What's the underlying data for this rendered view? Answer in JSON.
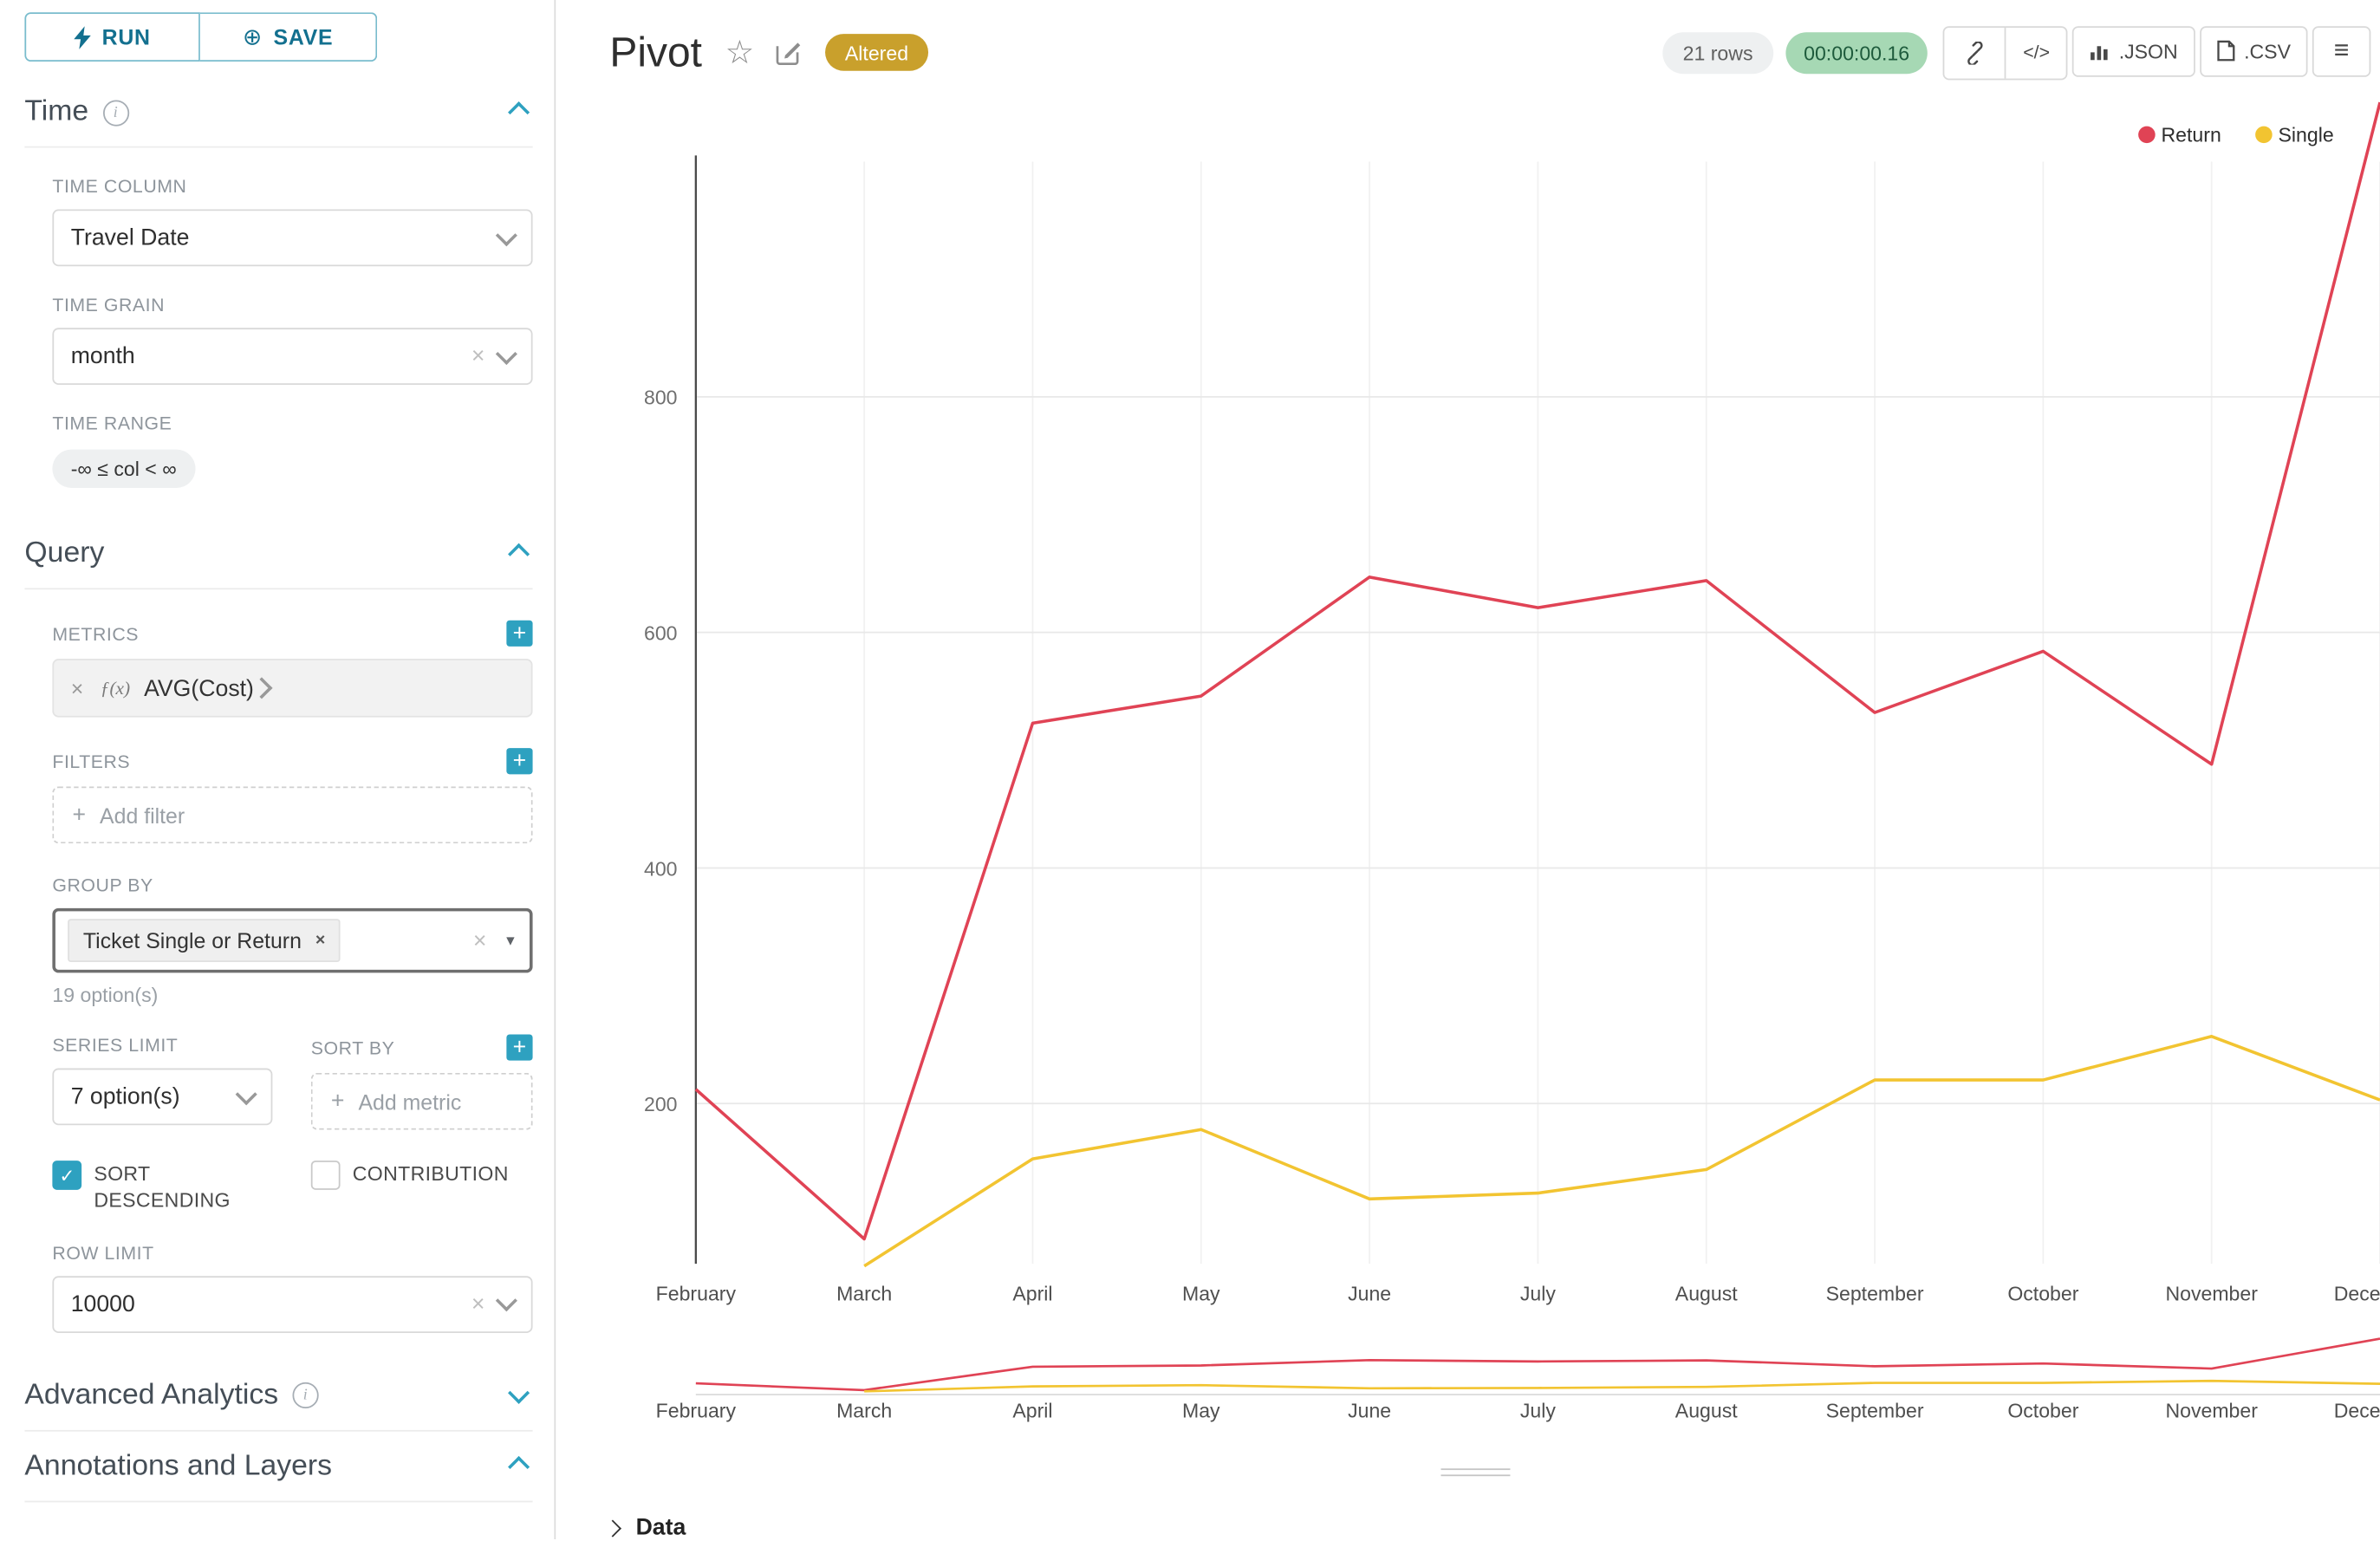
{
  "toolbar": {
    "run_label": "RUN",
    "save_label": "SAVE"
  },
  "panel": {
    "time": {
      "title": "Time",
      "time_column_label": "TIME COLUMN",
      "time_column_value": "Travel Date",
      "time_grain_label": "TIME GRAIN",
      "time_grain_value": "month",
      "time_range_label": "TIME RANGE",
      "time_range_value": "-∞ ≤ col < ∞"
    },
    "query": {
      "title": "Query",
      "metrics_label": "METRICS",
      "metric_value": "AVG(Cost)",
      "filters_label": "FILTERS",
      "add_filter_label": "Add filter",
      "group_by_label": "GROUP BY",
      "group_by_tag": "Ticket Single or Return",
      "group_by_hint": "19 option(s)",
      "series_limit_label": "SERIES LIMIT",
      "series_limit_value": "7 option(s)",
      "sort_by_label": "SORT BY",
      "add_metric_label": "Add metric",
      "sort_descending_label": "SORT DESCENDING",
      "contribution_label": "CONTRIBUTION",
      "row_limit_label": "ROW LIMIT",
      "row_limit_value": "10000"
    },
    "advanced_analytics_title": "Advanced Analytics",
    "annotations_title": "Annotations and Layers"
  },
  "header": {
    "title": "Pivot",
    "altered_badge": "Altered",
    "rows_badge": "21 rows",
    "timer": "00:00:00.16",
    "code_button": "</>",
    "json_button": ".JSON",
    "csv_button": ".CSV"
  },
  "icons": {
    "plus": "+",
    "close": "×",
    "star": "☆",
    "save_circle": "⊕",
    "menu": "≡",
    "caret_down": "▼",
    "check": "✓",
    "info": "i",
    "fx": "ƒ(x)"
  },
  "data_panel": {
    "title": "Data"
  },
  "colors": {
    "accent": "#20A7C9",
    "return_series": "#E04355",
    "single_series": "#F2C431",
    "altered_badge": "#C9A02C",
    "timer_badge": "#A6D8B4"
  },
  "chart_data": {
    "type": "line",
    "title": "",
    "xlabel": "",
    "ylabel": "",
    "categories": [
      "February",
      "March",
      "April",
      "May",
      "June",
      "July",
      "August",
      "September",
      "October",
      "November",
      "December"
    ],
    "series": [
      {
        "name": "Return",
        "color": "#E04355",
        "values": [
          212,
          85,
          523,
          546,
          647,
          621,
          644,
          532,
          584,
          488,
          1050
        ]
      },
      {
        "name": "Single",
        "color": "#F2C431",
        "values": [
          null,
          62,
          153,
          178,
          119,
          124,
          144,
          220,
          220,
          257,
          203
        ]
      }
    ],
    "yticks": [
      200,
      400,
      600,
      800
    ],
    "ylim": [
      64,
      1065
    ],
    "mini_ylim": [
      0,
      1100
    ],
    "grid": true,
    "legend_position": "top-right",
    "has_mini_preview": true
  }
}
